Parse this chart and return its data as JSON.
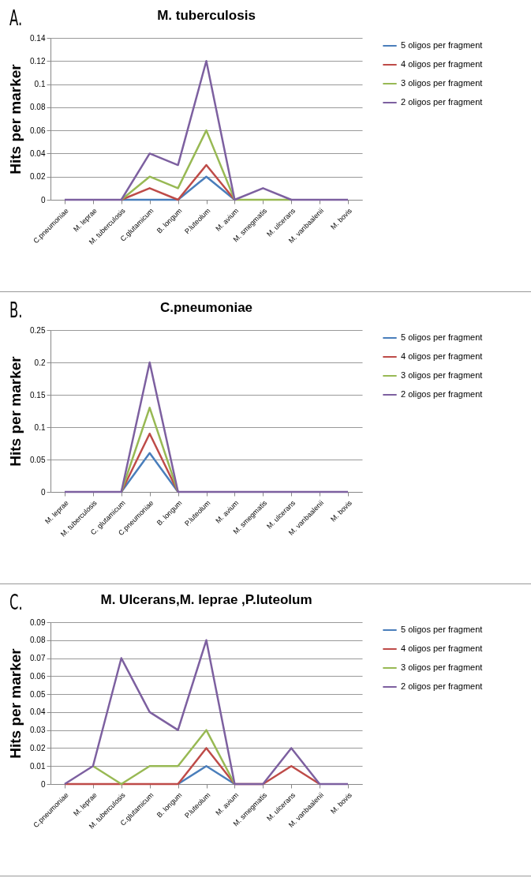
{
  "chart_data": [
    {
      "type": "line",
      "title": "M. tuberculosis",
      "ylabel": "Hits per marker",
      "annotations": [
        "A."
      ],
      "categories": [
        "C.pneumoniae",
        "M. leprae",
        "M. tuberculosis",
        "C.glutamicum",
        "B. longum",
        "P.luteolum",
        "M. avium",
        "M. smegmatis",
        "M. ulcerans",
        "M. vanbaalenii",
        "M. bovis"
      ],
      "ylim": [
        0,
        0.14
      ],
      "yticks": [
        0,
        0.02,
        0.04,
        0.06,
        0.08,
        0.1,
        0.12,
        0.14
      ],
      "grid": "y",
      "legend": "right",
      "series": [
        {
          "name": "5 oligos per fragment",
          "color": "#4a7ebb",
          "values": [
            null,
            null,
            0,
            0,
            0,
            0.02,
            0,
            null,
            null,
            null,
            null
          ]
        },
        {
          "name": "4 oligos per fragment",
          "color": "#be4b48",
          "values": [
            null,
            null,
            0,
            0.01,
            0,
            0.03,
            0,
            null,
            null,
            null,
            null
          ]
        },
        {
          "name": "3 oligos per fragment",
          "color": "#98b954",
          "values": [
            null,
            null,
            0,
            0.02,
            0.01,
            0.06,
            0,
            0,
            0,
            null,
            null
          ]
        },
        {
          "name": "2 oligos per fragment",
          "color": "#7d60a0",
          "values": [
            0,
            0,
            0,
            0.04,
            0.03,
            0.12,
            0,
            0.01,
            0,
            0,
            0
          ]
        }
      ]
    },
    {
      "type": "line",
      "title": "C.pneumoniae",
      "ylabel": "Hits per marker",
      "annotations": [
        "B."
      ],
      "categories": [
        "M. leprae",
        "M. tuberculosis",
        "C. glutamicum",
        "C.pneumoniae",
        "B. longum",
        "P.luteolum",
        "M. avium",
        "M. smegmatis",
        "M. ulcerans",
        "M. vanbaalenii",
        "M. bovis"
      ],
      "ylim": [
        0,
        0.25
      ],
      "yticks": [
        0,
        0.05,
        0.1,
        0.15,
        0.2,
        0.25
      ],
      "grid": "y",
      "legend": "right",
      "series": [
        {
          "name": "5 oligos per fragment",
          "color": "#4a7ebb",
          "values": [
            null,
            null,
            0,
            0.06,
            0,
            null,
            null,
            null,
            null,
            null,
            null
          ]
        },
        {
          "name": "4 oligos per fragment",
          "color": "#be4b48",
          "values": [
            null,
            null,
            0,
            0.09,
            0,
            null,
            null,
            null,
            null,
            null,
            null
          ]
        },
        {
          "name": "3 oligos per fragment",
          "color": "#98b954",
          "values": [
            null,
            null,
            0,
            0.13,
            0,
            null,
            null,
            null,
            null,
            null,
            null
          ]
        },
        {
          "name": "2 oligos per fragment",
          "color": "#7d60a0",
          "values": [
            0,
            0,
            0,
            0.2,
            0,
            0,
            0,
            0,
            0,
            0,
            0
          ]
        }
      ]
    },
    {
      "type": "line",
      "title": "M. Ulcerans,M. leprae ,P.luteolum",
      "ylabel": "Hits per marker",
      "annotations": [
        "C."
      ],
      "categories": [
        "C.pneumoniae",
        "M. leprae",
        "M. tuberculosis",
        "C.glutamicum",
        "B. longum",
        "P.luteolum",
        "M. avium",
        "M. smegmatis",
        "M. ulcerans",
        "M. vanbaalenii",
        "M. bovis"
      ],
      "ylim": [
        0,
        0.09
      ],
      "yticks": [
        0,
        0.01,
        0.02,
        0.03,
        0.04,
        0.05,
        0.06,
        0.07,
        0.08,
        0.09
      ],
      "grid": "y",
      "legend": "right",
      "series": [
        {
          "name": "5 oligos per fragment",
          "color": "#4a7ebb",
          "values": [
            null,
            null,
            null,
            null,
            0,
            0.01,
            0,
            null,
            null,
            null,
            null
          ]
        },
        {
          "name": "4 oligos per fragment",
          "color": "#be4b48",
          "values": [
            0,
            0,
            0,
            0,
            0,
            0.02,
            0,
            0,
            0.01,
            0,
            null
          ]
        },
        {
          "name": "3 oligos per fragment",
          "color": "#98b954",
          "values": [
            null,
            0.01,
            0,
            0.01,
            0.01,
            0.03,
            0,
            null,
            null,
            null,
            null
          ]
        },
        {
          "name": "2 oligos per fragment",
          "color": "#7d60a0",
          "values": [
            0,
            0.01,
            0.07,
            0.04,
            0.03,
            0.08,
            0,
            0,
            0.02,
            0,
            0
          ]
        }
      ]
    }
  ]
}
